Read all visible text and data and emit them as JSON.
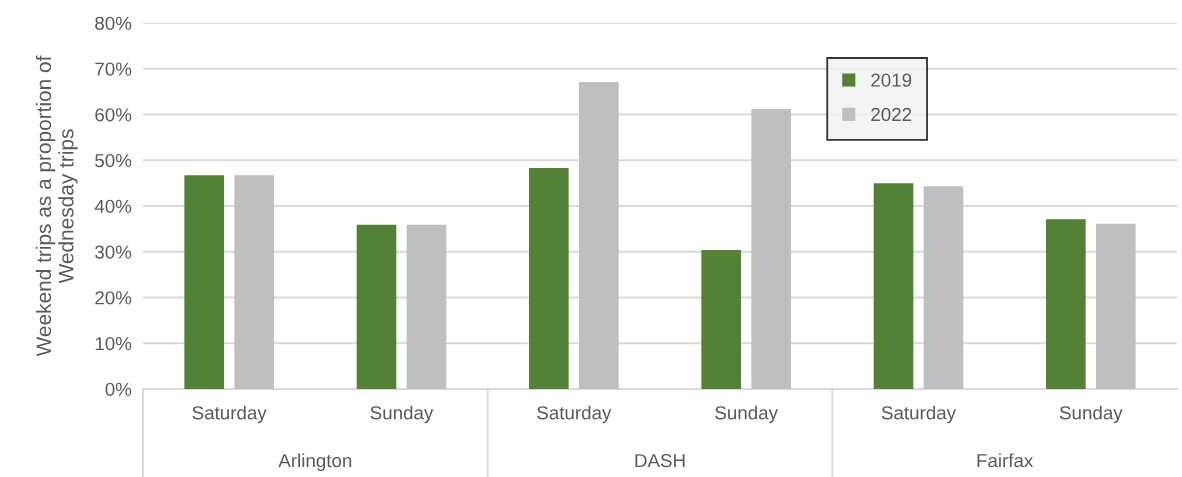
{
  "chart_data": {
    "type": "bar",
    "ylabel": "Weekend trips as a proportion of Wednesday trips",
    "categories": [
      "Saturday",
      "Sunday",
      "Saturday",
      "Sunday",
      "Saturday",
      "Sunday"
    ],
    "annotations": [
      "Arlington",
      "DASH",
      "Fairfax"
    ],
    "series": [
      {
        "name": "2019",
        "color": "#538135",
        "values": [
          46.7,
          35.9,
          48.3,
          30.4,
          45.0,
          37.1
        ]
      },
      {
        "name": "2022",
        "color": "#bfbfbf",
        "values": [
          46.7,
          35.9,
          67.1,
          61.2,
          44.3,
          36.1
        ]
      }
    ],
    "ylim": [
      0,
      80
    ],
    "yticks": [
      {
        "value": 0,
        "label": "0%"
      },
      {
        "value": 10,
        "label": "10%"
      },
      {
        "value": 20,
        "label": "20%"
      },
      {
        "value": 30,
        "label": "30%"
      },
      {
        "value": 40,
        "label": "40%"
      },
      {
        "value": 50,
        "label": "50%"
      },
      {
        "value": 60,
        "label": "60%"
      },
      {
        "value": 70,
        "label": "70%"
      },
      {
        "value": 80,
        "label": "80%"
      }
    ],
    "grid": "y",
    "legend": "top"
  }
}
